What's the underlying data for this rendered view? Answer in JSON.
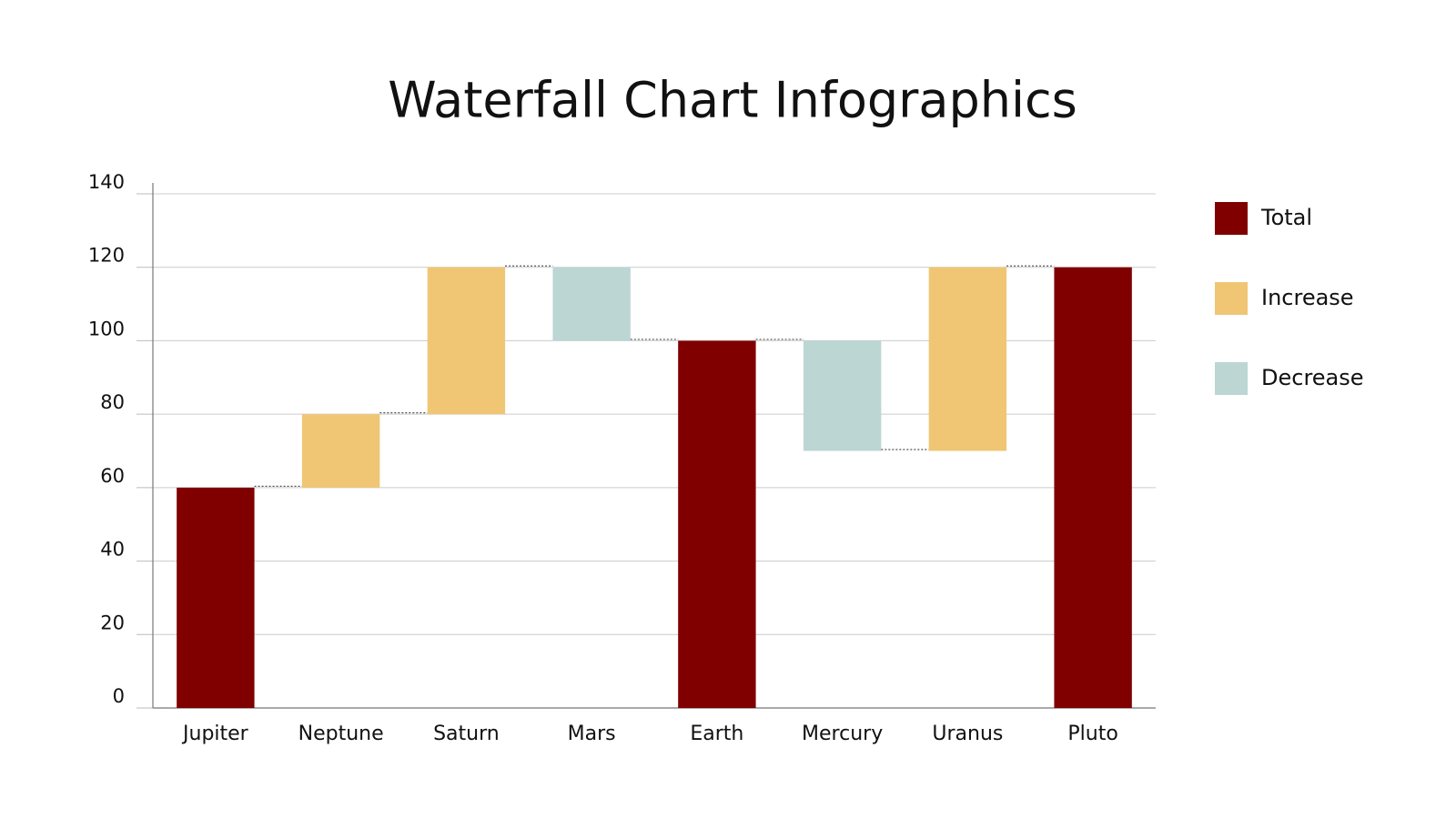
{
  "chart_data": {
    "type": "waterfall",
    "title": "Waterfall Chart Infographics",
    "categories": [
      "Jupiter",
      "Neptune",
      "Saturn",
      "Mars",
      "Earth",
      "Mercury",
      "Uranus",
      "Pluto"
    ],
    "series": [
      {
        "name": "Total",
        "color": "#800000",
        "values": [
          60,
          null,
          null,
          null,
          100,
          null,
          null,
          120
        ]
      },
      {
        "name": "Increase",
        "color": "#f0c674",
        "values": [
          null,
          20,
          40,
          null,
          null,
          null,
          50,
          null
        ]
      },
      {
        "name": "Decrease",
        "color": "#bbd6d3",
        "values": [
          null,
          null,
          null,
          -20,
          null,
          -30,
          null,
          null
        ]
      }
    ],
    "ylim": [
      0,
      140
    ],
    "yticks": [
      0,
      20,
      40,
      60,
      80,
      100,
      120,
      140
    ],
    "grid": true,
    "legend": "right"
  }
}
